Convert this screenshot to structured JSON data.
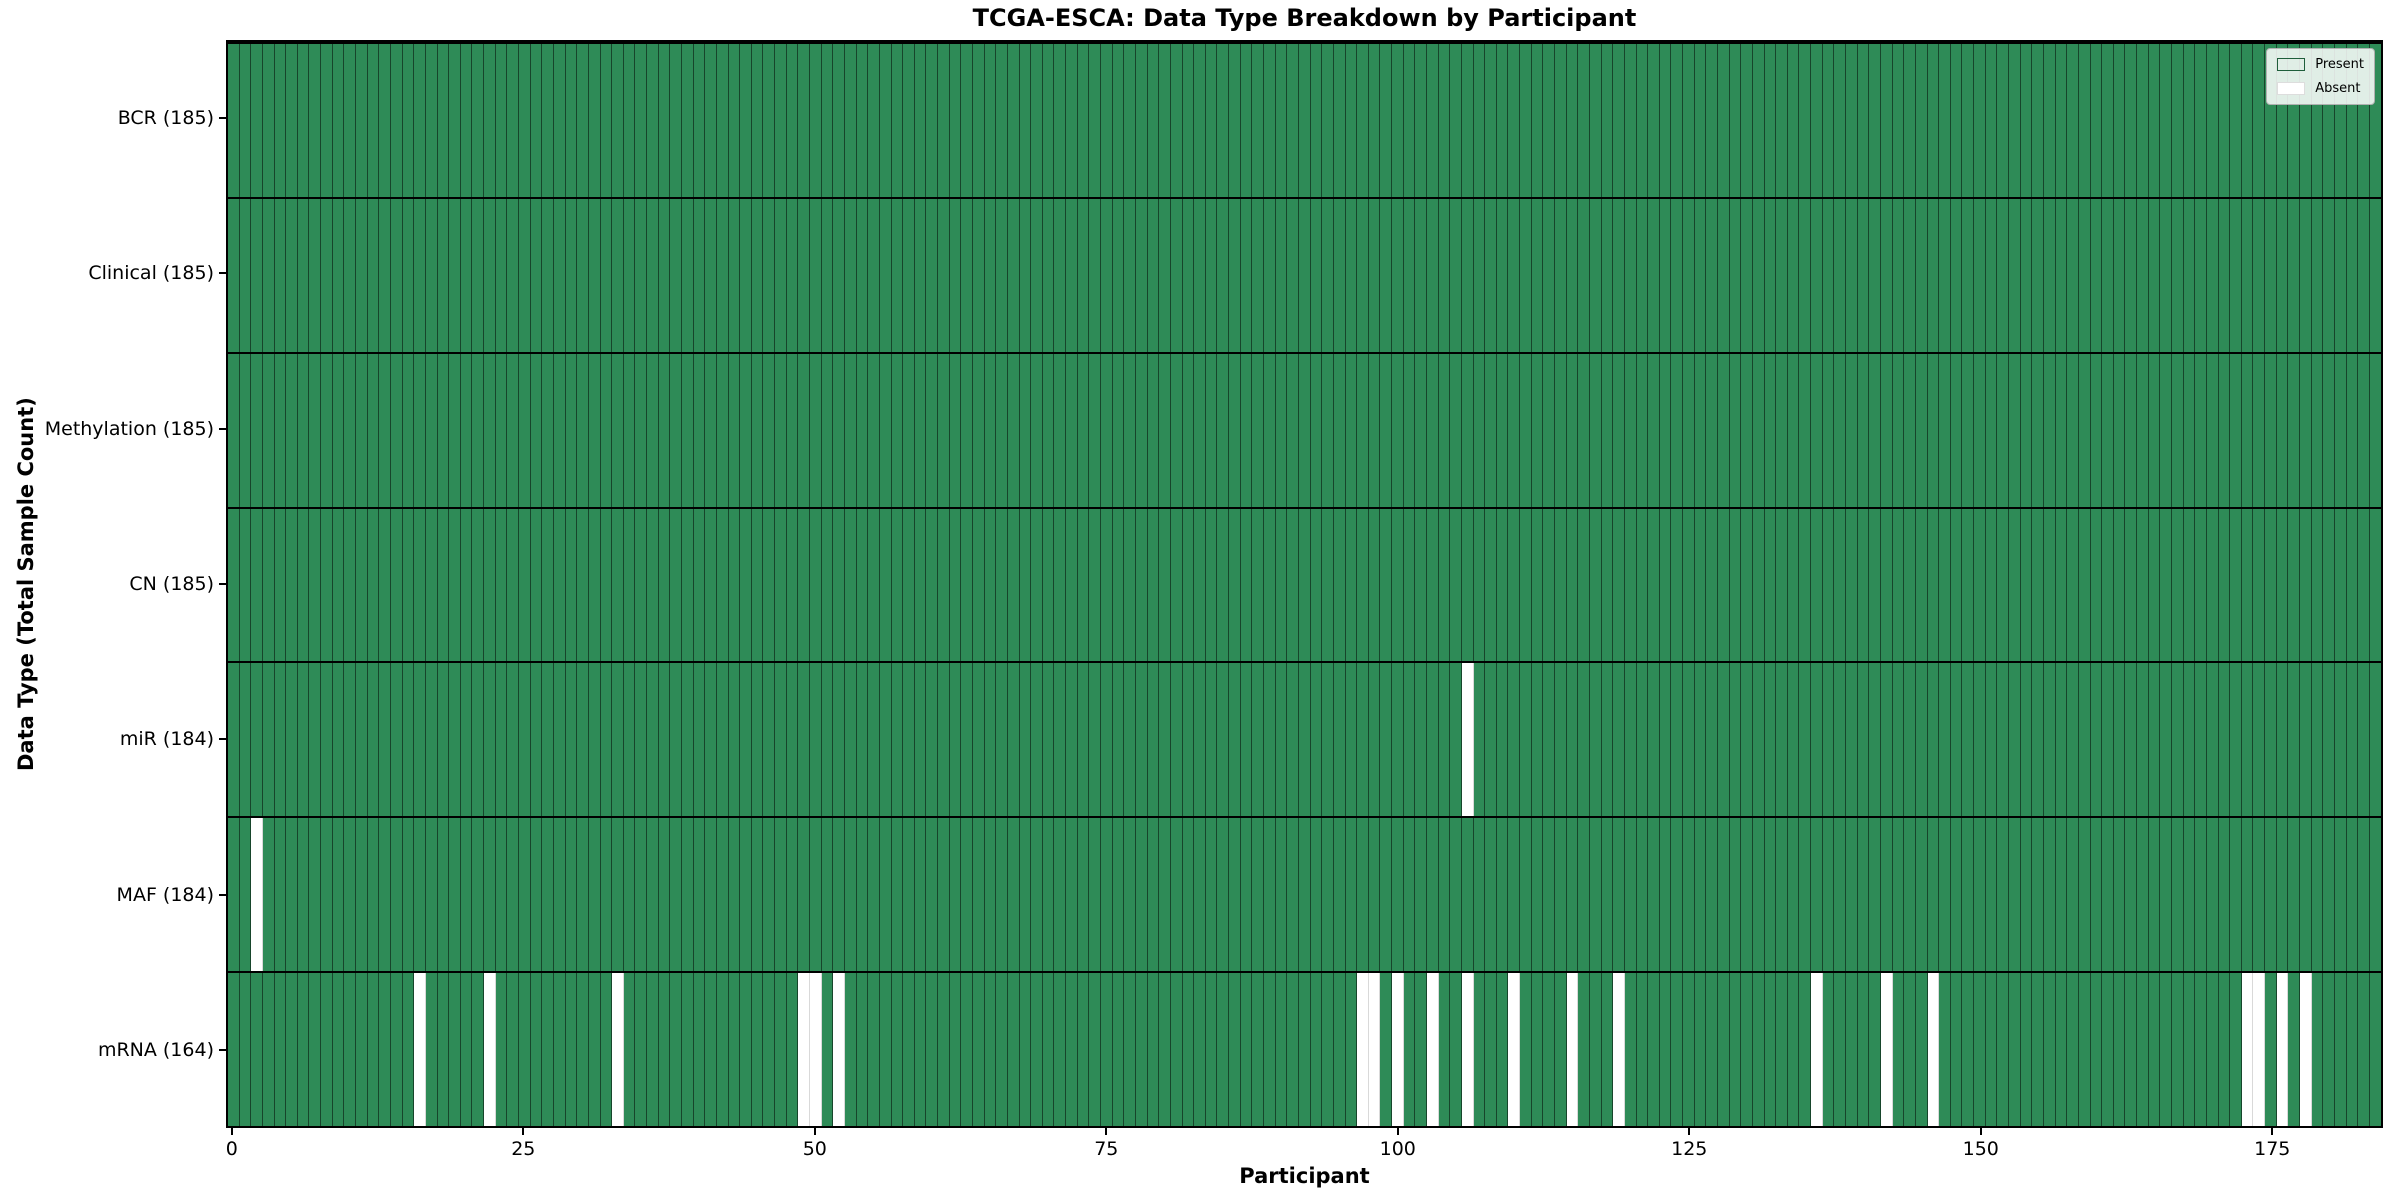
{
  "title": "TCGA-ESCA: Data Type Breakdown by Participant",
  "x_axis": {
    "label": "Participant",
    "ticks": [
      "0",
      "25",
      "50",
      "75",
      "100",
      "125",
      "150",
      "175"
    ],
    "tick_values": [
      0,
      25,
      50,
      75,
      100,
      125,
      150,
      175
    ]
  },
  "y_axis": {
    "label": "Data Type (Total Sample Count)"
  },
  "legend": {
    "present_label": "Present",
    "absent_label": "Absent"
  },
  "colors": {
    "present": "#2e8b57",
    "absent": "#ffffff"
  },
  "chart_data": {
    "type": "heatmap",
    "title": "TCGA-ESCA: Data Type Breakdown by Participant",
    "xlabel": "Participant",
    "ylabel": "Data Type (Total Sample Count)",
    "x_range": [
      0,
      185
    ],
    "n_participants": 185,
    "legend_position": "upper right",
    "grid": "cell edges drawn",
    "value_encoding": {
      "present": 1,
      "absent": 0
    },
    "rows": [
      {
        "label": "BCR (185)",
        "data_type": "BCR",
        "total": 185,
        "absent_participants": []
      },
      {
        "label": "Clinical (185)",
        "data_type": "Clinical",
        "total": 185,
        "absent_participants": []
      },
      {
        "label": "Methylation (185)",
        "data_type": "Methylation",
        "total": 185,
        "absent_participants": []
      },
      {
        "label": "CN (185)",
        "data_type": "CN",
        "total": 185,
        "absent_participants": []
      },
      {
        "label": "miR (184)",
        "data_type": "miR",
        "total": 184,
        "absent_participants": [
          106
        ]
      },
      {
        "label": "MAF (184)",
        "data_type": "MAF",
        "total": 184,
        "absent_participants": [
          2
        ]
      },
      {
        "label": "mRNA (164)",
        "data_type": "mRNA",
        "total": 164,
        "absent_participants": [
          16,
          22,
          33,
          49,
          50,
          52,
          97,
          98,
          100,
          103,
          106,
          110,
          115,
          119,
          136,
          142,
          146,
          173,
          174,
          176,
          178
        ]
      }
    ]
  }
}
